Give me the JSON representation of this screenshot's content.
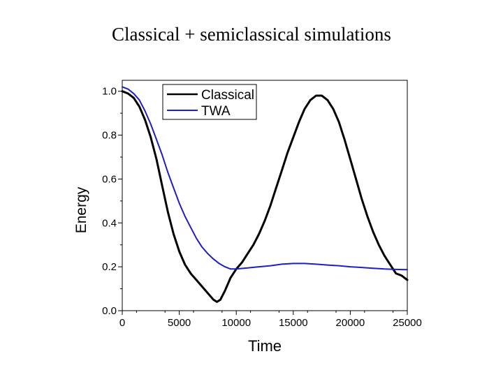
{
  "title": "Classical + semiclassical simulations",
  "chart_data": {
    "type": "line",
    "title": "Classical + semiclassical simulations",
    "xlabel": "Time",
    "ylabel": "Energy",
    "xlim": [
      0,
      25000
    ],
    "ylim": [
      0,
      1.05
    ],
    "x_ticks": [
      "0",
      "5000",
      "10000",
      "15000",
      "20000",
      "25000"
    ],
    "y_ticks": [
      "0.0",
      "0.2",
      "0.4",
      "0.6",
      "0.8",
      "1.0"
    ],
    "grid": false,
    "legend_position": "top-right",
    "series": [
      {
        "name": "Classical",
        "color": "#000000",
        "x": [
          0,
          500,
          1000,
          1500,
          2000,
          2500,
          3000,
          3500,
          4000,
          4500,
          5000,
          5500,
          6000,
          6500,
          7000,
          7500,
          8000,
          8300,
          8600,
          9000,
          9500,
          10000,
          10500,
          11000,
          11500,
          12000,
          12500,
          13000,
          13500,
          14000,
          14500,
          15000,
          15500,
          16000,
          16500,
          17000,
          17500,
          18000,
          18500,
          19000,
          19500,
          20000,
          20500,
          21000,
          21500,
          22000,
          22500,
          23000,
          23500,
          24000,
          24500,
          25000
        ],
        "values": [
          1.0,
          0.99,
          0.97,
          0.93,
          0.87,
          0.79,
          0.69,
          0.57,
          0.45,
          0.35,
          0.27,
          0.21,
          0.17,
          0.14,
          0.11,
          0.08,
          0.05,
          0.04,
          0.05,
          0.09,
          0.15,
          0.19,
          0.22,
          0.26,
          0.3,
          0.35,
          0.41,
          0.48,
          0.56,
          0.64,
          0.72,
          0.79,
          0.86,
          0.92,
          0.96,
          0.98,
          0.98,
          0.96,
          0.92,
          0.86,
          0.78,
          0.69,
          0.6,
          0.51,
          0.43,
          0.36,
          0.3,
          0.25,
          0.21,
          0.17,
          0.16,
          0.14
        ]
      },
      {
        "name": "TWA",
        "color": "#1f1fbf",
        "x": [
          0,
          500,
          1000,
          1500,
          2000,
          2500,
          3000,
          3500,
          4000,
          4500,
          5000,
          5500,
          6000,
          6500,
          7000,
          7500,
          8000,
          8500,
          9000,
          9500,
          10000,
          11000,
          12000,
          13000,
          14000,
          15000,
          16000,
          17000,
          18000,
          19000,
          20000,
          21000,
          22000,
          23000,
          24000,
          25000
        ],
        "values": [
          1.02,
          1.01,
          0.99,
          0.96,
          0.91,
          0.85,
          0.78,
          0.71,
          0.63,
          0.56,
          0.49,
          0.43,
          0.38,
          0.33,
          0.29,
          0.26,
          0.235,
          0.215,
          0.2,
          0.19,
          0.19,
          0.195,
          0.2,
          0.205,
          0.212,
          0.215,
          0.215,
          0.212,
          0.208,
          0.205,
          0.2,
          0.197,
          0.193,
          0.19,
          0.188,
          0.187
        ]
      }
    ]
  }
}
